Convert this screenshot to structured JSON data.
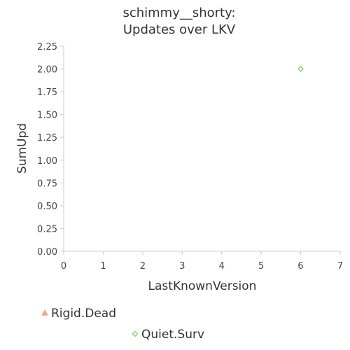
{
  "chart_data": {
    "type": "scatter",
    "title_lines": [
      "schimmy__shorty:",
      "Updates over LKV"
    ],
    "xlabel": "LastKnownVersion",
    "ylabel": "SumUpd",
    "xlim": [
      0,
      7
    ],
    "ylim": [
      0,
      2.25
    ],
    "x_ticks": [
      "0",
      "1",
      "2",
      "3",
      "4",
      "5",
      "6",
      "7"
    ],
    "y_ticks": [
      "0.00",
      "0.25",
      "0.50",
      "0.75",
      "1.00",
      "1.25",
      "1.50",
      "1.75",
      "2.00",
      "2.25"
    ],
    "grid": false,
    "legend_position": "bottom",
    "series": [
      {
        "name": "Rigid.Dead",
        "marker": "triangle",
        "color": "#f4a582",
        "points": []
      },
      {
        "name": "Quiet.Surv",
        "marker": "diamond",
        "color": "#8fd37b",
        "points": [
          {
            "x": 6,
            "y": 2.0
          }
        ]
      }
    ]
  }
}
